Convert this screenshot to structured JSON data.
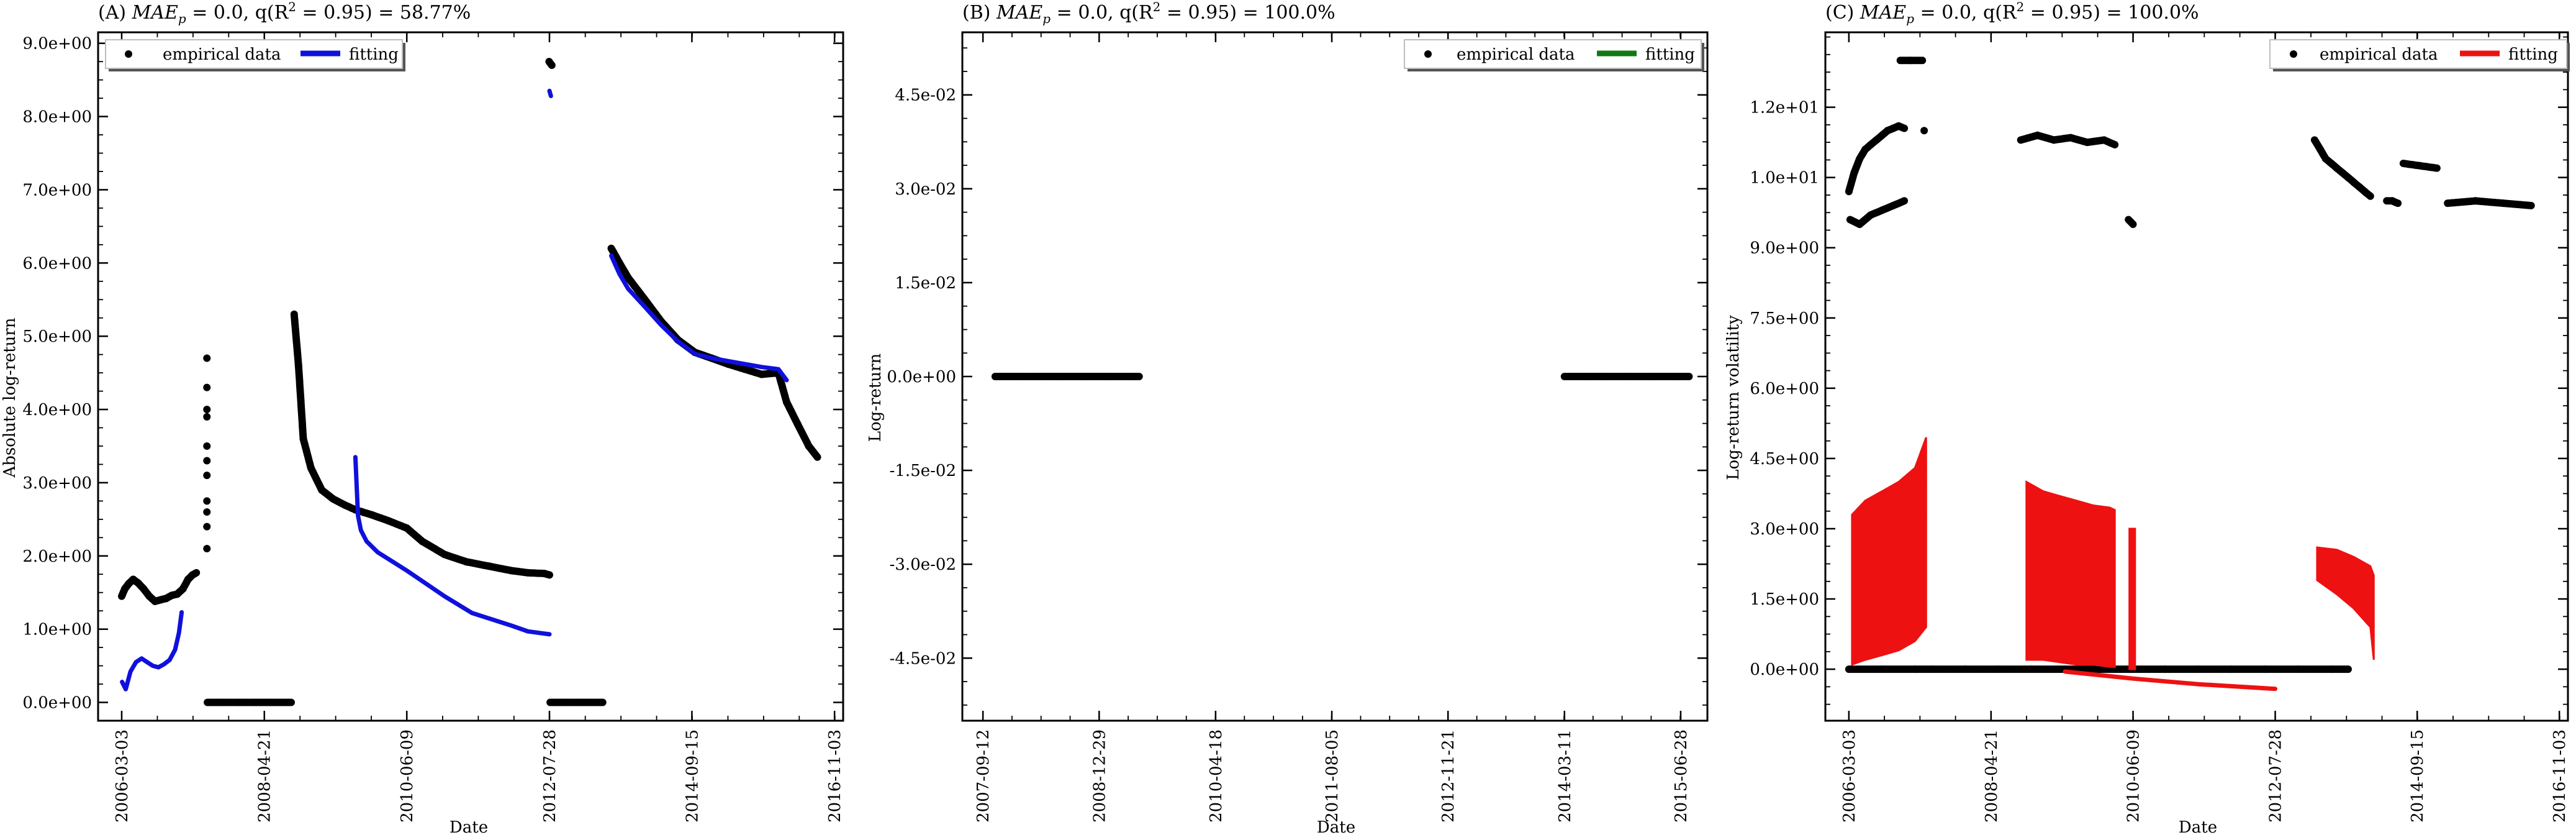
{
  "colors": {
    "empirical": "#000000",
    "fit_a": "#1010dd",
    "fit_b": "#107a10",
    "fit_c": "#ee1111"
  },
  "chart_data": [
    {
      "type": "scatter",
      "title": "(A) MAE_p = 0.0, q(R^2 = 0.95) = 58.77%",
      "title_parts": {
        "prefix": "(A) ",
        "mae": "MAE",
        "mae_sub": "p",
        "mid": " = 0.0, q(R",
        "r_sup": "2",
        "suffix": " = 0.95) = 58.77%"
      },
      "xlabel": "Date",
      "ylabel": "Absolute log-return",
      "xlim": [
        "2005-10-25",
        "2016-12-20"
      ],
      "xticks": [
        "2006-03-03",
        "2008-04-21",
        "2010-06-09",
        "2012-07-28",
        "2014-09-15",
        "2016-11-03"
      ],
      "ylim": [
        -0.25,
        9.15
      ],
      "yticks": [
        0,
        1,
        2,
        3,
        4,
        5,
        6,
        7,
        8,
        9
      ],
      "ytick_labels": [
        "0.0e+00",
        "1.0e+00",
        "2.0e+00",
        "3.0e+00",
        "4.0e+00",
        "5.0e+00",
        "6.0e+00",
        "7.0e+00",
        "8.0e+00",
        "9.0e+00"
      ],
      "legend_position": "top-left",
      "legend": [
        "empirical data",
        "fitting"
      ],
      "series": [
        {
          "name": "empirical data",
          "kind": "dots",
          "segments": [
            {
              "x": [
                "2006-03-03",
                "2006-03-20",
                "2006-04-10",
                "2006-05-05",
                "2006-06-01",
                "2006-07-01",
                "2006-08-01",
                "2006-09-01",
                "2006-10-01",
                "2006-11-01",
                "2006-12-01",
                "2007-01-01",
                "2007-02-01",
                "2007-03-01",
                "2007-03-25",
                "2007-04-15"
              ],
              "y": [
                1.45,
                1.55,
                1.62,
                1.68,
                1.63,
                1.55,
                1.45,
                1.38,
                1.4,
                1.42,
                1.46,
                1.48,
                1.55,
                1.68,
                1.74,
                1.77
              ]
            },
            {
              "x": [
                "2007-06-12",
                "2007-06-12",
                "2007-06-12",
                "2007-06-12",
                "2007-06-12",
                "2007-06-12",
                "2007-06-12",
                "2007-06-12",
                "2007-06-12",
                "2007-06-12",
                "2007-06-12"
              ],
              "y": [
                2.1,
                2.4,
                2.75,
                3.1,
                3.5,
                3.9,
                4.3,
                4.7,
                2.6,
                3.3,
                4.0
              ]
            },
            {
              "x": [
                "2007-06-15",
                "2007-09-01",
                "2007-12-01",
                "2008-03-01",
                "2008-06-01",
                "2008-09-15"
              ],
              "y": [
                0,
                0,
                0,
                0,
                0,
                0
              ]
            },
            {
              "x": [
                "2008-10-01",
                "2008-10-25",
                "2008-11-20",
                "2009-01-01",
                "2009-03-01",
                "2009-05-01",
                "2009-07-01",
                "2009-09-01",
                "2009-12-01",
                "2010-03-01",
                "2010-06-09",
                "2010-09-01",
                "2011-01-01",
                "2011-05-01",
                "2011-09-01",
                "2012-01-01",
                "2012-04-01",
                "2012-07-01",
                "2012-07-28"
              ],
              "y": [
                5.3,
                4.6,
                3.6,
                3.2,
                2.9,
                2.78,
                2.7,
                2.63,
                2.56,
                2.48,
                2.38,
                2.2,
                2.02,
                1.92,
                1.86,
                1.8,
                1.77,
                1.76,
                1.74
              ]
            },
            {
              "x": [
                "2012-07-26",
                "2012-08-10"
              ],
              "y": [
                8.75,
                8.7
              ]
            },
            {
              "x": [
                "2012-08-01",
                "2012-11-01",
                "2013-02-01",
                "2013-05-15"
              ],
              "y": [
                0,
                0,
                0,
                0
              ]
            },
            {
              "x": [
                "2013-07-01",
                "2013-08-15",
                "2013-10-01",
                "2014-01-01",
                "2014-04-01",
                "2014-07-01",
                "2014-10-01",
                "2015-01-01",
                "2015-04-01",
                "2015-07-01",
                "2015-10-01",
                "2016-01-01",
                "2016-02-15",
                "2016-04-15",
                "2016-06-15",
                "2016-08-01"
              ],
              "y": [
                6.2,
                6.0,
                5.8,
                5.5,
                5.2,
                4.95,
                4.78,
                4.7,
                4.62,
                4.55,
                4.48,
                4.5,
                4.1,
                3.8,
                3.5,
                3.35
              ]
            }
          ]
        },
        {
          "name": "fitting",
          "kind": "line",
          "segments": [
            {
              "x": [
                "2006-03-05",
                "2006-03-25",
                "2006-04-20",
                "2006-05-20",
                "2006-06-20",
                "2006-07-20",
                "2006-08-20",
                "2006-09-20",
                "2006-10-20",
                "2006-11-20",
                "2006-12-20",
                "2007-01-10",
                "2007-01-25"
              ],
              "y": [
                0.28,
                0.18,
                0.42,
                0.55,
                0.6,
                0.55,
                0.5,
                0.48,
                0.52,
                0.58,
                0.72,
                0.95,
                1.23
              ]
            },
            {
              "x": [
                "2009-09-01",
                "2009-09-15",
                "2009-10-01",
                "2009-11-01",
                "2010-01-01",
                "2010-06-09",
                "2011-01-01",
                "2011-06-01",
                "2012-01-01",
                "2012-04-01",
                "2012-07-28"
              ],
              "y": [
                3.35,
                2.55,
                2.35,
                2.2,
                2.05,
                1.8,
                1.45,
                1.22,
                1.05,
                0.97,
                0.93
              ]
            },
            {
              "x": [
                "2012-07-28",
                "2012-08-05"
              ],
              "y": [
                8.35,
                8.28
              ]
            },
            {
              "x": [
                "2013-07-01",
                "2013-08-15",
                "2013-10-01",
                "2014-01-01",
                "2014-04-01",
                "2014-07-01",
                "2014-10-01",
                "2015-01-01",
                "2015-04-01",
                "2015-07-01",
                "2015-10-01",
                "2016-01-01",
                "2016-02-15"
              ],
              "y": [
                6.1,
                5.85,
                5.65,
                5.4,
                5.15,
                4.93,
                4.76,
                4.7,
                4.66,
                4.62,
                4.58,
                4.55,
                4.4
              ]
            }
          ]
        }
      ]
    },
    {
      "type": "scatter",
      "title": "(B) MAE_p = 0.0, q(R^2 = 0.95) = 100.0%",
      "title_parts": {
        "prefix": "(B) ",
        "mae": "MAE",
        "mae_sub": "p",
        "mid": " = 0.0, q(R",
        "r_sup": "2",
        "suffix": " = 0.95) = 100.0%"
      },
      "xlabel": "Date",
      "ylabel": "Log-return",
      "xlim": [
        "2007-06-20",
        "2015-10-15"
      ],
      "xticks": [
        "2007-09-12",
        "2008-12-29",
        "2010-04-18",
        "2011-08-05",
        "2012-11-21",
        "2014-03-11",
        "2015-06-28"
      ],
      "ylim": [
        -0.055,
        0.055
      ],
      "yticks": [
        -0.045,
        -0.03,
        -0.015,
        0,
        0.015,
        0.03,
        0.045
      ],
      "ytick_labels": [
        "-4.5e-02",
        "-3.0e-02",
        "-1.5e-02",
        "0.0e+00",
        "1.5e-02",
        "3.0e-02",
        "4.5e-02"
      ],
      "legend_position": "top-right",
      "legend": [
        "empirical data",
        "fitting"
      ],
      "series": [
        {
          "name": "empirical data",
          "kind": "dots",
          "segments": [
            {
              "x": [
                "2007-11-01",
                "2008-02-01",
                "2008-05-01",
                "2008-08-01",
                "2008-11-01",
                "2009-02-01",
                "2009-05-01",
                "2009-06-10"
              ],
              "y": [
                0,
                0,
                0,
                0,
                0,
                0,
                0,
                0
              ]
            },
            {
              "x": [
                "2014-03-11",
                "2014-06-01",
                "2014-09-01",
                "2014-12-01",
                "2015-03-01",
                "2015-06-01",
                "2015-08-01"
              ],
              "y": [
                0,
                0,
                0,
                0,
                0,
                0,
                0
              ]
            }
          ]
        },
        {
          "name": "fitting",
          "kind": "line",
          "segments": []
        }
      ]
    },
    {
      "type": "scatter",
      "title": "(C) MAE_p = 0.0, q(R^2 = 0.95) = 100.0%",
      "title_parts": {
        "prefix": "(C) ",
        "mae": "MAE",
        "mae_sub": "p",
        "mid": " = 0.0, q(R",
        "r_sup": "2",
        "suffix": " = 0.95) = 100.0%"
      },
      "xlabel": "Date",
      "ylabel": "Log-return volatility",
      "xlim": [
        "2005-10-25",
        "2016-12-20"
      ],
      "xticks": [
        "2006-03-03",
        "2008-04-21",
        "2010-06-09",
        "2012-07-28",
        "2014-09-15",
        "2016-11-03"
      ],
      "ylim": [
        -1.1,
        13.6
      ],
      "yticks": [
        0,
        1.5,
        3,
        4.5,
        6,
        7.5,
        9,
        10.5,
        12
      ],
      "ytick_labels": [
        "0.0e+00",
        "1.5e+00",
        "3.0e+00",
        "4.5e+00",
        "6.0e+00",
        "7.5e+00",
        "9.0e+00",
        "1.0e+01",
        "1.2e+01"
      ],
      "legend_position": "top-right",
      "legend": [
        "empirical data",
        "fitting"
      ],
      "series": [
        {
          "name": "empirical data",
          "kind": "dots",
          "segments": [
            {
              "x": [
                "2006-03-03",
                "2006-04-01",
                "2006-05-01",
                "2006-06-01",
                "2006-07-01",
                "2006-08-01",
                "2006-09-01",
                "2006-10-01",
                "2006-11-01",
                "2006-12-01",
                "2007-01-01"
              ],
              "y": [
                10.2,
                10.6,
                10.9,
                11.1,
                11.2,
                11.3,
                11.4,
                11.5,
                11.55,
                11.6,
                11.55
              ]
            },
            {
              "x": [
                "2006-03-10",
                "2006-05-01",
                "2006-07-01",
                "2006-09-01",
                "2006-11-01",
                "2007-01-01"
              ],
              "y": [
                9.6,
                9.5,
                9.7,
                9.8,
                9.9,
                10.0
              ]
            },
            {
              "x": [
                "2006-12-10",
                "2007-02-01",
                "2007-04-10"
              ],
              "y": [
                13.0,
                13.0,
                13.0
              ]
            },
            {
              "x": [
                "2007-04-20"
              ],
              "y": [
                11.5
              ]
            },
            {
              "x": [
                "2008-10-01",
                "2009-01-01",
                "2009-04-01",
                "2009-07-01",
                "2009-10-01",
                "2010-01-01",
                "2010-03-01"
              ],
              "y": [
                11.3,
                11.4,
                11.3,
                11.35,
                11.25,
                11.3,
                11.2
              ]
            },
            {
              "x": [
                "2010-05-15",
                "2010-06-09"
              ],
              "y": [
                9.6,
                9.5
              ]
            },
            {
              "x": [
                "2013-03-01",
                "2013-04-01",
                "2013-05-01",
                "2013-06-01",
                "2013-07-01",
                "2013-08-01",
                "2013-09-01",
                "2013-10-01",
                "2013-11-01",
                "2013-12-01",
                "2014-01-01"
              ],
              "y": [
                11.3,
                11.1,
                10.9,
                10.8,
                10.7,
                10.6,
                10.5,
                10.4,
                10.3,
                10.2,
                10.1
              ]
            },
            {
              "x": [
                "2014-04-01",
                "2014-05-01",
                "2014-06-01"
              ],
              "y": [
                10.0,
                10.0,
                9.95
              ]
            },
            {
              "x": [
                "2014-07-01",
                "2014-10-01",
                "2015-01-01"
              ],
              "y": [
                10.8,
                10.75,
                10.7
              ]
            },
            {
              "x": [
                "2015-03-01",
                "2015-08-01",
                "2016-01-01",
                "2016-06-01"
              ],
              "y": [
                9.95,
                10.0,
                9.95,
                9.9
              ]
            },
            {
              "x": [
                "2006-03-03",
                "2006-09-01",
                "2007-03-01",
                "2007-06-01",
                "2007-12-01",
                "2008-06-01",
                "2008-12-01",
                "2009-06-01",
                "2009-12-01",
                "2010-06-01",
                "2010-12-01",
                "2011-06-01",
                "2011-12-01",
                "2012-06-01",
                "2012-12-01",
                "2013-06-01",
                "2013-09-01"
              ],
              "y": [
                0,
                0,
                0,
                0,
                0,
                0,
                0,
                0,
                0,
                0,
                0,
                0,
                0,
                0,
                0,
                0,
                0
              ]
            }
          ]
        },
        {
          "name": "fitting",
          "kind": "band",
          "segments": [
            {
              "x": [
                "2006-03-20",
                "2006-06-01",
                "2006-09-01",
                "2006-12-01",
                "2007-03-01",
                "2007-05-01"
              ],
              "y_low": [
                0.1,
                0.2,
                0.3,
                0.4,
                0.6,
                0.9
              ],
              "y_high": [
                3.3,
                3.6,
                3.8,
                4.0,
                4.3,
                4.95
              ]
            },
            {
              "x": [
                "2008-11-01",
                "2009-02-01",
                "2009-05-01",
                "2009-08-01",
                "2009-11-01",
                "2010-02-01",
                "2010-03-01"
              ],
              "y_low": [
                0.2,
                0.2,
                0.15,
                0.1,
                0.1,
                0.05,
                0.05
              ],
              "y_high": [
                4.0,
                3.8,
                3.7,
                3.6,
                3.5,
                3.45,
                3.4
              ]
            },
            {
              "x": [
                "2010-05-20",
                "2010-06-20"
              ],
              "y_low": [
                0,
                0
              ],
              "y_high": [
                3.0,
                3.0
              ]
            },
            {
              "x": [
                "2013-03-15",
                "2013-07-01",
                "2013-10-01",
                "2014-01-01",
                "2014-01-20"
              ],
              "y_low": [
                1.9,
                1.6,
                1.3,
                0.9,
                0.2
              ],
              "y_high": [
                2.6,
                2.55,
                2.4,
                2.2,
                2.0
              ]
            }
          ]
        },
        {
          "name": "fitting",
          "kind": "line",
          "segments": [
            {
              "x": [
                "2009-06-01",
                "2010-06-09",
                "2011-06-01",
                "2012-07-28"
              ],
              "y": [
                -0.05,
                -0.2,
                -0.32,
                -0.42
              ]
            }
          ]
        }
      ]
    }
  ]
}
